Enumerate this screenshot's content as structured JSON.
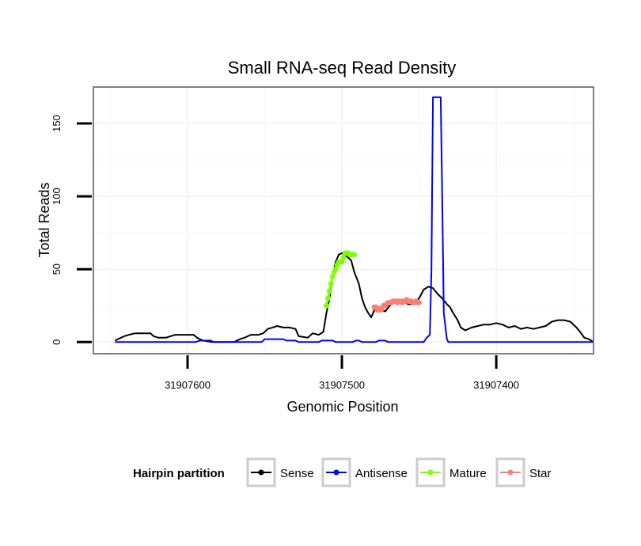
{
  "chart_data": {
    "type": "line",
    "title": "Small RNA-seq Read Density",
    "xlabel": "Genomic Position",
    "ylabel": "Total Reads",
    "xlim": [
      31907661,
      31907337
    ],
    "ylim": [
      -8,
      175
    ],
    "x_reversed": true,
    "grid": true,
    "x_ticks": [
      31907600,
      31907500,
      31907400
    ],
    "x_tick_labels": [
      "31907600",
      "31907500",
      "31907400"
    ],
    "y_ticks": [
      0,
      50,
      100,
      150
    ],
    "y_tick_labels": [
      "0",
      "50",
      "100",
      "150"
    ],
    "legend": {
      "title": "Hairpin partition",
      "position": "bottom",
      "entries": [
        "Sense",
        "Antisense",
        "Mature",
        "Star"
      ]
    },
    "series": [
      {
        "name": "Sense",
        "color": "#000000",
        "points": [
          [
            31907647,
            1
          ],
          [
            31907643,
            3
          ],
          [
            31907641,
            4
          ],
          [
            31907638,
            5
          ],
          [
            31907634,
            6
          ],
          [
            31907628,
            6
          ],
          [
            31907624,
            6
          ],
          [
            31907622,
            4
          ],
          [
            31907619,
            3
          ],
          [
            31907614,
            3
          ],
          [
            31907611,
            4
          ],
          [
            31907608,
            5
          ],
          [
            31907602,
            5
          ],
          [
            31907596,
            5
          ],
          [
            31907594,
            3
          ],
          [
            31907590,
            1
          ],
          [
            31907584,
            0
          ],
          [
            31907575,
            0
          ],
          [
            31907570,
            0
          ],
          [
            31907566,
            2
          ],
          [
            31907563,
            3
          ],
          [
            31907559,
            5
          ],
          [
            31907554,
            5
          ],
          [
            31907551,
            6
          ],
          [
            31907548,
            9
          ],
          [
            31907545,
            10
          ],
          [
            31907542,
            11
          ],
          [
            31907538,
            10
          ],
          [
            31907534,
            10
          ],
          [
            31907530,
            9
          ],
          [
            31907528,
            4
          ],
          [
            31907522,
            3
          ],
          [
            31907519,
            6
          ],
          [
            31907515,
            5
          ],
          [
            31907512,
            7
          ],
          [
            31907510,
            20
          ],
          [
            31907508,
            30
          ],
          [
            31907506,
            45
          ],
          [
            31907504,
            55
          ],
          [
            31907502,
            60
          ],
          [
            31907500,
            61
          ],
          [
            31907498,
            60
          ],
          [
            31907496,
            58
          ],
          [
            31907494,
            56
          ],
          [
            31907492,
            48
          ],
          [
            31907489,
            40
          ],
          [
            31907487,
            30
          ],
          [
            31907485,
            24
          ],
          [
            31907483,
            20
          ],
          [
            31907481,
            17
          ],
          [
            31907479,
            22
          ],
          [
            31907476,
            24
          ],
          [
            31907474,
            22
          ],
          [
            31907472,
            21
          ],
          [
            31907469,
            25
          ],
          [
            31907466,
            27
          ],
          [
            31907463,
            28
          ],
          [
            31907461,
            27
          ],
          [
            31907459,
            27
          ],
          [
            31907457,
            26
          ],
          [
            31907455,
            26
          ],
          [
            31907452,
            28
          ],
          [
            31907450,
            30
          ],
          [
            31907447,
            36
          ],
          [
            31907444,
            38
          ],
          [
            31907441,
            37
          ],
          [
            31907438,
            33
          ],
          [
            31907435,
            30
          ],
          [
            31907432,
            26
          ],
          [
            31907430,
            24
          ],
          [
            31907428,
            20
          ],
          [
            31907425,
            15
          ],
          [
            31907423,
            10
          ],
          [
            31907420,
            8
          ],
          [
            31907416,
            10
          ],
          [
            31907412,
            11
          ],
          [
            31907408,
            12
          ],
          [
            31907404,
            12
          ],
          [
            31907400,
            13
          ],
          [
            31907396,
            12
          ],
          [
            31907392,
            10
          ],
          [
            31907388,
            11
          ],
          [
            31907384,
            9
          ],
          [
            31907380,
            10
          ],
          [
            31907376,
            9
          ],
          [
            31907372,
            10
          ],
          [
            31907368,
            11
          ],
          [
            31907364,
            14
          ],
          [
            31907360,
            15
          ],
          [
            31907356,
            15
          ],
          [
            31907352,
            14
          ],
          [
            31907348,
            10
          ],
          [
            31907345,
            6
          ],
          [
            31907343,
            3
          ],
          [
            31907340,
            2
          ],
          [
            31907337,
            0
          ]
        ]
      },
      {
        "name": "Antisense",
        "color": "#0000ff",
        "points": [
          [
            31907647,
            0
          ],
          [
            31907595,
            0
          ],
          [
            31907592,
            1
          ],
          [
            31907585,
            1
          ],
          [
            31907583,
            0
          ],
          [
            31907552,
            0
          ],
          [
            31907550,
            2
          ],
          [
            31907538,
            2
          ],
          [
            31907536,
            1
          ],
          [
            31907530,
            1
          ],
          [
            31907528,
            0
          ],
          [
            31907515,
            0
          ],
          [
            31907513,
            1
          ],
          [
            31907506,
            1
          ],
          [
            31907504,
            0
          ],
          [
            31907493,
            0
          ],
          [
            31907491,
            1
          ],
          [
            31907489,
            1
          ],
          [
            31907487,
            0
          ],
          [
            31907478,
            0
          ],
          [
            31907476,
            1
          ],
          [
            31907472,
            1
          ],
          [
            31907470,
            0
          ],
          [
            31907447,
            0
          ],
          [
            31907445,
            3
          ],
          [
            31907443,
            5
          ],
          [
            31907442,
            50
          ],
          [
            31907441,
            168
          ],
          [
            31907436,
            168
          ],
          [
            31907435,
            100
          ],
          [
            31907434,
            20
          ],
          [
            31907432,
            2
          ],
          [
            31907431,
            0
          ],
          [
            31907337,
            0
          ]
        ]
      },
      {
        "name": "Mature",
        "color": "#7fff00",
        "points": [
          [
            31907510,
            25
          ],
          [
            31907509,
            30
          ],
          [
            31907508,
            35
          ],
          [
            31907507,
            40
          ],
          [
            31907506,
            45
          ],
          [
            31907505,
            48
          ],
          [
            31907504,
            50
          ],
          [
            31907503,
            53
          ],
          [
            31907502,
            55
          ],
          [
            31907501,
            55
          ],
          [
            31907500,
            55
          ],
          [
            31907499,
            58
          ],
          [
            31907498,
            61
          ],
          [
            31907497,
            61
          ],
          [
            31907496,
            61
          ],
          [
            31907495,
            60
          ],
          [
            31907494,
            60
          ],
          [
            31907493,
            60
          ],
          [
            31907492,
            60
          ]
        ]
      },
      {
        "name": "Star",
        "color": "#fa8072",
        "points": [
          [
            31907479,
            24
          ],
          [
            31907478,
            24
          ],
          [
            31907477,
            22
          ],
          [
            31907476,
            23
          ],
          [
            31907475,
            22
          ],
          [
            31907474,
            23
          ],
          [
            31907473,
            25
          ],
          [
            31907472,
            25
          ],
          [
            31907471,
            26
          ],
          [
            31907470,
            27
          ],
          [
            31907469,
            27
          ],
          [
            31907468,
            27
          ],
          [
            31907467,
            28
          ],
          [
            31907466,
            28
          ],
          [
            31907465,
            28
          ],
          [
            31907464,
            27
          ],
          [
            31907463,
            28
          ],
          [
            31907462,
            28
          ],
          [
            31907461,
            27
          ],
          [
            31907460,
            28
          ],
          [
            31907459,
            28
          ],
          [
            31907458,
            29
          ],
          [
            31907457,
            28
          ],
          [
            31907456,
            28
          ],
          [
            31907455,
            28
          ],
          [
            31907454,
            27
          ],
          [
            31907453,
            27
          ],
          [
            31907452,
            28
          ],
          [
            31907451,
            27
          ],
          [
            31907450,
            27
          ]
        ]
      }
    ]
  }
}
